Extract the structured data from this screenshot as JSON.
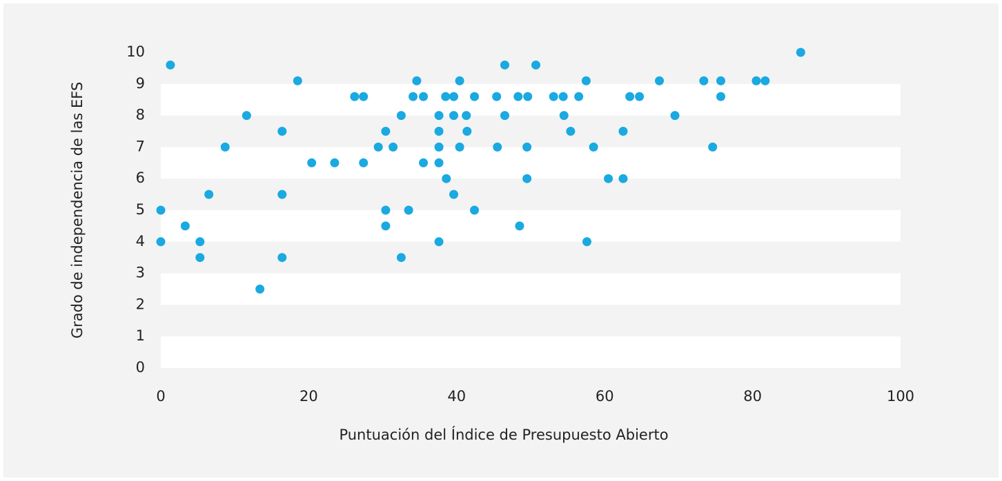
{
  "chart_data": {
    "type": "scatter",
    "xlabel": "Puntuación del Índice de Presupuesto Abierto",
    "ylabel": "Grado de independencia de las EFS",
    "xlim": [
      0,
      100
    ],
    "xticks": [
      0,
      20,
      40,
      60,
      80,
      100
    ],
    "ylim": [
      0,
      10
    ],
    "yticks": [
      0,
      1,
      2,
      3,
      4,
      5,
      6,
      7,
      8,
      9,
      10
    ],
    "grid": "bands",
    "color": "#1aa9e1",
    "x": [
      0,
      0,
      1.3,
      3.3,
      5.3,
      5.3,
      6.5,
      8.7,
      11.6,
      13.4,
      16.4,
      16.4,
      16.4,
      18.5,
      20.4,
      23.5,
      26.2,
      27.4,
      27.4,
      29.4,
      30.4,
      30.4,
      30.4,
      31.4,
      32.5,
      32.5,
      33.5,
      34.1,
      34.6,
      35.5,
      35.5,
      37.6,
      37.6,
      37.6,
      37.6,
      37.6,
      38.5,
      38.6,
      39.6,
      39.6,
      39.6,
      40.4,
      40.4,
      41.3,
      41.4,
      42.4,
      42.4,
      45.4,
      45.5,
      46.5,
      46.5,
      48.3,
      48.5,
      49.6,
      49.5,
      49.5,
      50.7,
      53.1,
      54.4,
      54.5,
      55.4,
      56.5,
      57.5,
      57.6,
      58.5,
      60.5,
      62.5,
      62.5,
      63.4,
      64.7,
      67.4,
      69.5,
      73.4,
      74.6,
      75.7,
      75.7,
      80.5,
      81.7,
      86.5
    ],
    "values": [
      5.0,
      4.0,
      9.6,
      4.5,
      4.0,
      3.5,
      5.5,
      7.0,
      8.0,
      2.5,
      7.5,
      5.5,
      3.5,
      9.1,
      6.5,
      6.5,
      8.6,
      8.6,
      6.5,
      7.0,
      7.5,
      5.0,
      4.5,
      7.0,
      8.0,
      3.5,
      5.0,
      8.6,
      9.1,
      8.6,
      6.5,
      8.0,
      7.5,
      7.0,
      6.5,
      4.0,
      8.6,
      6.0,
      8.6,
      8.0,
      5.5,
      9.1,
      7.0,
      8.0,
      7.5,
      8.6,
      5.0,
      8.6,
      7.0,
      9.6,
      8.0,
      8.6,
      4.5,
      8.6,
      7.0,
      6.0,
      9.6,
      8.6,
      8.6,
      8.0,
      7.5,
      8.6,
      9.1,
      4.0,
      7.0,
      6.0,
      7.5,
      6.0,
      8.6,
      8.6,
      9.1,
      8.0,
      9.1,
      7.0,
      9.1,
      8.6,
      9.1,
      9.1,
      10.0
    ]
  }
}
